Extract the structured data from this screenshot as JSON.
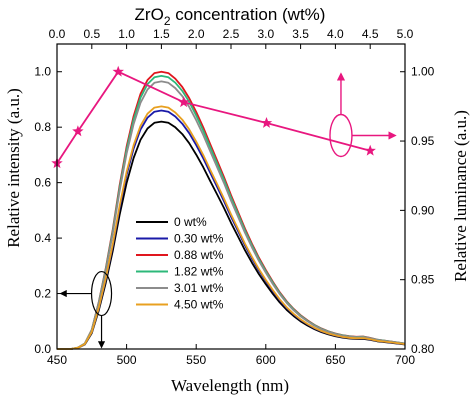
{
  "chart_data": {
    "type": "line",
    "title": "",
    "xlabel": "Wavelength (nm)",
    "ylabel_left": "Relative intensity (a.u.)",
    "ylabel_right": "Relative luminance (a.u.)",
    "x2label": {
      "main": "ZrO",
      "sub": "2",
      "rest": " concentration (wt%)"
    },
    "xlim": [
      450,
      700
    ],
    "ylim_left": [
      0,
      1.1
    ],
    "ylim_right": [
      0.8,
      1.02
    ],
    "x2lim": [
      0,
      5
    ],
    "grid": false,
    "legend_position": "center-left",
    "x_ticks": [
      450,
      500,
      550,
      600,
      650,
      700
    ],
    "y_ticks_left": [
      "0.0",
      "0.2",
      "0.4",
      "0.6",
      "0.8",
      "1.0"
    ],
    "y_ticks_right": [
      "0.80",
      "0.85",
      "0.90",
      "0.95",
      "1.00"
    ],
    "x2_ticks": [
      "0.0",
      "0.5",
      "1.0",
      "1.5",
      "2.0",
      "2.5",
      "3.0",
      "3.5",
      "4.0",
      "4.5",
      "5.0"
    ],
    "spectrum_profile_x": [
      450,
      460,
      465,
      470,
      475,
      480,
      485,
      490,
      495,
      500,
      505,
      510,
      515,
      520,
      525,
      530,
      535,
      540,
      545,
      550,
      555,
      560,
      565,
      570,
      575,
      580,
      585,
      590,
      595,
      600,
      605,
      610,
      615,
      620,
      625,
      630,
      635,
      640,
      645,
      650,
      655,
      660,
      665,
      670,
      675,
      680,
      690,
      700
    ],
    "spectrum_profile_y": [
      0,
      0,
      0.005,
      0.02,
      0.07,
      0.17,
      0.29,
      0.43,
      0.59,
      0.73,
      0.84,
      0.92,
      0.97,
      0.995,
      1.0,
      0.995,
      0.975,
      0.945,
      0.905,
      0.855,
      0.8,
      0.74,
      0.68,
      0.62,
      0.555,
      0.495,
      0.435,
      0.38,
      0.33,
      0.285,
      0.243,
      0.205,
      0.172,
      0.145,
      0.122,
      0.103,
      0.087,
      0.074,
      0.064,
      0.056,
      0.05,
      0.046,
      0.044,
      0.045,
      0.04,
      0.034,
      0.027,
      0.02
    ],
    "series": [
      {
        "name": "0 wt%",
        "color": "#000000",
        "peak": 0.82
      },
      {
        "name": "0.30 wt%",
        "color": "#1a1aa8",
        "peak": 0.86
      },
      {
        "name": "0.88 wt%",
        "color": "#e0161e",
        "peak": 1.0
      },
      {
        "name": "1.82 wt%",
        "color": "#2db87a",
        "peak": 0.985
      },
      {
        "name": "3.01 wt%",
        "color": "#8c8c8c",
        "peak": 0.965
      },
      {
        "name": "4.50 wt%",
        "color": "#e8a020",
        "peak": 0.875
      }
    ],
    "luminance": {
      "color": "#e8177f",
      "x": [
        0.0,
        0.3,
        0.88,
        1.82,
        3.01,
        4.5
      ],
      "y": [
        0.934,
        0.957,
        1.0,
        0.978,
        0.963,
        0.943
      ]
    }
  }
}
